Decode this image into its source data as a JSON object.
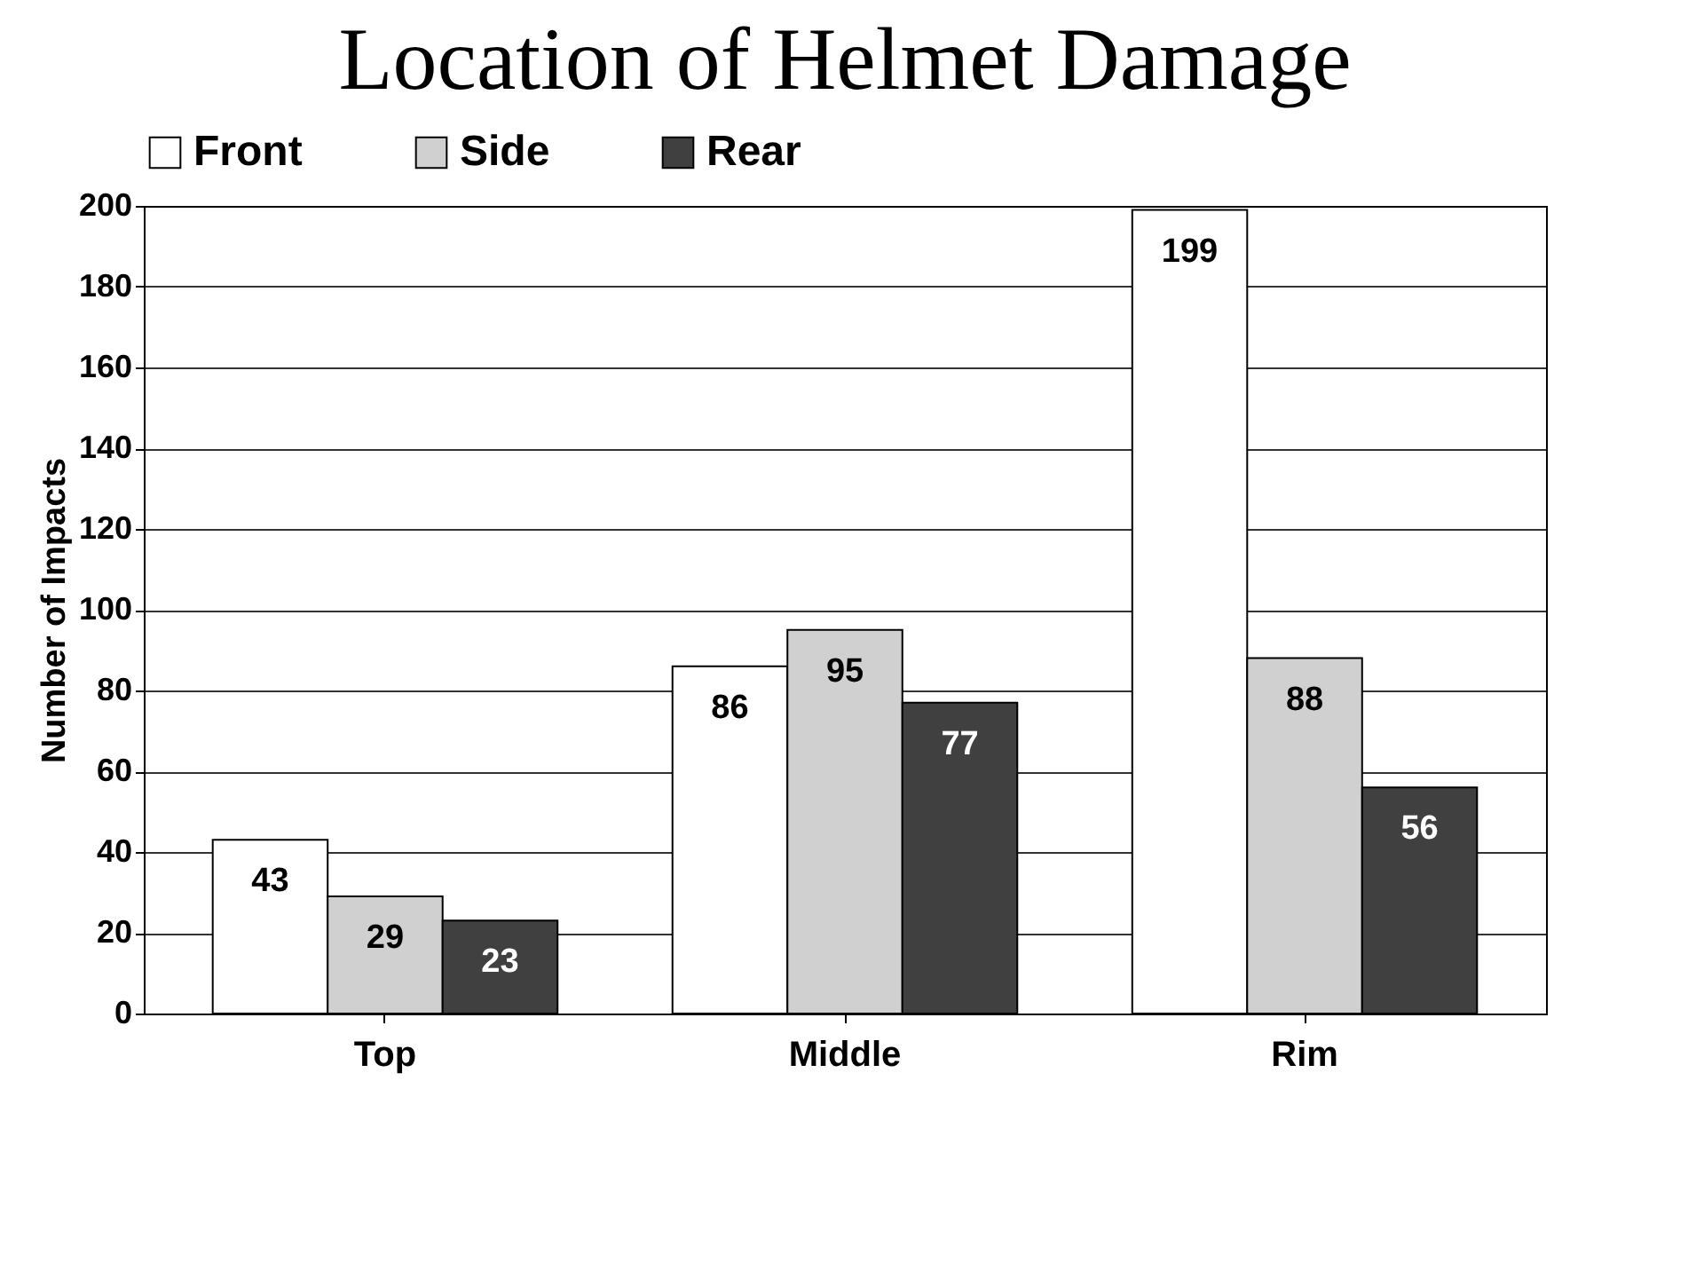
{
  "chart_data": {
    "type": "bar",
    "title": "Location of Helmet Damage",
    "ylabel": "Number of Impacts",
    "categories": [
      "Top",
      "Middle",
      "Rim"
    ],
    "series": [
      {
        "name": "Front",
        "color": "#ffffff",
        "values": [
          43,
          86,
          199
        ]
      },
      {
        "name": "Side",
        "color": "#d0d0d0",
        "values": [
          29,
          95,
          88
        ]
      },
      {
        "name": "Rear",
        "color": "#404040",
        "values": [
          23,
          77,
          56
        ]
      }
    ],
    "ylim": [
      0,
      200
    ],
    "yticks": [
      0,
      20,
      40,
      60,
      80,
      100,
      120,
      140,
      160,
      180,
      200
    ],
    "grid": "y",
    "legend": "top",
    "data_labels": true
  }
}
